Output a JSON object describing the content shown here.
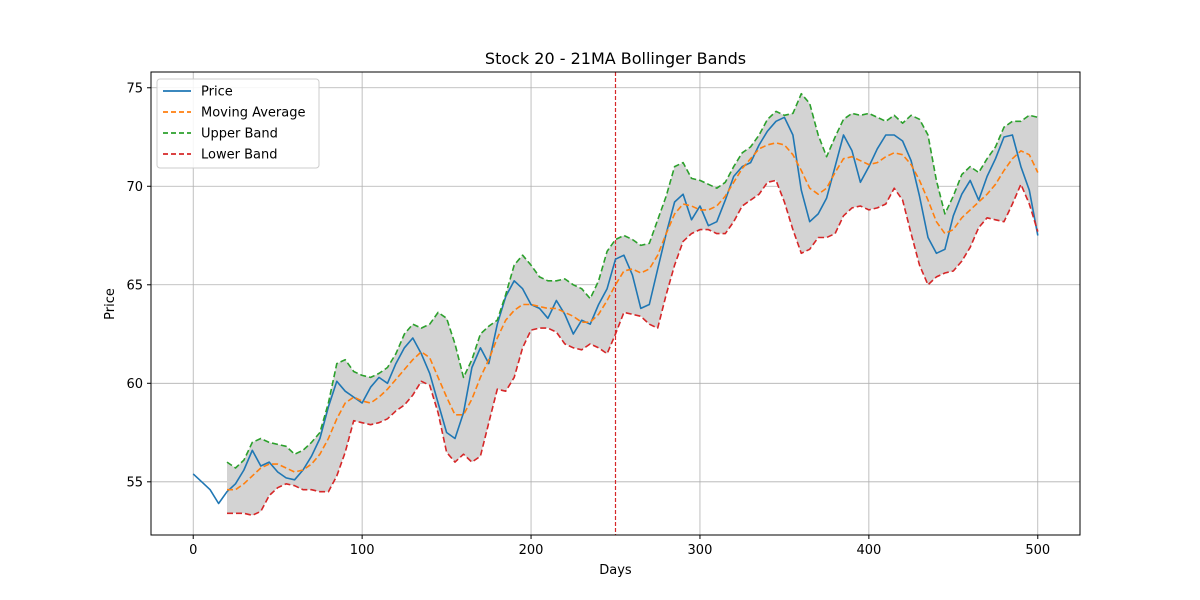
{
  "chart_data": {
    "type": "line",
    "title": "Stock 20 - 21MA Bollinger Bands",
    "xlabel": "Days",
    "ylabel": "Price",
    "xlim": [
      -25,
      525
    ],
    "ylim": [
      52.3,
      75.8
    ],
    "xticks": [
      0,
      100,
      200,
      300,
      400,
      500
    ],
    "yticks": [
      55,
      60,
      65,
      70,
      75
    ],
    "grid": true,
    "legend_position": "top-left",
    "vertical_marker": {
      "x": 250,
      "color": "#d62728",
      "style": "dashed"
    },
    "band_fill_color": "#d3d3d3",
    "series": [
      {
        "name": "Price",
        "color": "#1f77b4",
        "style": "solid",
        "x": [
          0,
          5,
          10,
          15,
          20,
          25,
          30,
          35,
          40,
          45,
          50,
          55,
          60,
          65,
          70,
          75,
          80,
          85,
          90,
          95,
          100,
          105,
          110,
          115,
          120,
          125,
          130,
          135,
          140,
          145,
          150,
          155,
          160,
          165,
          170,
          175,
          180,
          185,
          190,
          195,
          200,
          205,
          210,
          215,
          220,
          225,
          230,
          235,
          240,
          245,
          250,
          255,
          260,
          265,
          270,
          275,
          280,
          285,
          290,
          295,
          300,
          305,
          310,
          315,
          320,
          325,
          330,
          335,
          340,
          345,
          350,
          355,
          360,
          365,
          370,
          375,
          380,
          385,
          390,
          395,
          400,
          405,
          410,
          415,
          420,
          425,
          430,
          435,
          440,
          445,
          450,
          455,
          460,
          465,
          470,
          475,
          480,
          485,
          490,
          495,
          500
        ],
        "values": [
          55.4,
          55.0,
          54.6,
          53.9,
          54.5,
          54.9,
          55.6,
          56.6,
          55.8,
          56.0,
          55.5,
          55.2,
          55.1,
          55.6,
          56.3,
          57.2,
          58.8,
          60.1,
          59.6,
          59.3,
          59.0,
          59.8,
          60.3,
          60.0,
          61.0,
          61.8,
          62.3,
          61.5,
          60.5,
          59.0,
          57.5,
          57.2,
          58.5,
          60.8,
          61.8,
          61.0,
          63.0,
          64.4,
          65.2,
          64.8,
          64.0,
          63.8,
          63.3,
          64.2,
          63.5,
          62.5,
          63.2,
          63.0,
          64.0,
          64.8,
          66.3,
          66.5,
          65.5,
          63.8,
          64.0,
          65.8,
          67.6,
          69.2,
          69.6,
          68.3,
          69.0,
          68.0,
          68.2,
          69.3,
          70.5,
          71.0,
          71.2,
          72.1,
          72.8,
          73.3,
          73.5,
          72.6,
          69.8,
          68.2,
          68.6,
          69.4,
          71.0,
          72.6,
          71.8,
          70.2,
          71.0,
          71.9,
          72.6,
          72.6,
          72.3,
          71.3,
          69.5,
          67.4,
          66.6,
          66.8,
          68.5,
          69.6,
          70.3,
          69.3,
          70.5,
          71.4,
          72.5,
          72.6,
          71.0,
          69.8,
          67.5
        ]
      },
      {
        "name": "Moving Average",
        "color": "#ff7f0e",
        "style": "dashed",
        "x": [
          20,
          25,
          30,
          35,
          40,
          45,
          50,
          55,
          60,
          65,
          70,
          75,
          80,
          85,
          90,
          95,
          100,
          105,
          110,
          115,
          120,
          125,
          130,
          135,
          140,
          145,
          150,
          155,
          160,
          165,
          170,
          175,
          180,
          185,
          190,
          195,
          200,
          205,
          210,
          215,
          220,
          225,
          230,
          235,
          240,
          245,
          250,
          255,
          260,
          265,
          270,
          275,
          280,
          285,
          290,
          295,
          300,
          305,
          310,
          315,
          320,
          325,
          330,
          335,
          340,
          345,
          350,
          355,
          360,
          365,
          370,
          375,
          380,
          385,
          390,
          395,
          400,
          405,
          410,
          415,
          420,
          425,
          430,
          435,
          440,
          445,
          450,
          455,
          460,
          465,
          470,
          475,
          480,
          485,
          490,
          495,
          500
        ],
        "values": [
          54.6,
          54.6,
          54.9,
          55.3,
          55.7,
          55.9,
          55.9,
          55.7,
          55.5,
          55.6,
          55.9,
          56.4,
          57.2,
          58.2,
          59.0,
          59.3,
          59.1,
          59.0,
          59.3,
          59.7,
          60.2,
          60.7,
          61.2,
          61.6,
          61.3,
          60.3,
          59.3,
          58.4,
          58.4,
          59.2,
          60.3,
          61.2,
          62.3,
          63.2,
          63.7,
          64.0,
          64.0,
          63.9,
          63.8,
          63.8,
          63.6,
          63.4,
          63.1,
          63.1,
          63.5,
          64.2,
          65.0,
          65.7,
          65.8,
          65.6,
          65.8,
          66.5,
          67.6,
          68.6,
          69.1,
          69.0,
          68.8,
          68.8,
          69.0,
          69.5,
          70.2,
          70.9,
          71.4,
          71.9,
          72.1,
          72.2,
          72.1,
          71.6,
          70.8,
          69.9,
          69.6,
          69.9,
          70.7,
          71.4,
          71.5,
          71.3,
          71.1,
          71.2,
          71.5,
          71.7,
          71.6,
          71.1,
          70.3,
          69.3,
          68.2,
          67.6,
          67.8,
          68.4,
          68.8,
          69.2,
          69.6,
          70.1,
          70.8,
          71.4,
          71.8,
          71.6,
          70.7
        ]
      },
      {
        "name": "Upper Band",
        "color": "#2ca02c",
        "style": "dashed",
        "x": [
          20,
          25,
          30,
          35,
          40,
          45,
          50,
          55,
          60,
          65,
          70,
          75,
          80,
          85,
          90,
          95,
          100,
          105,
          110,
          115,
          120,
          125,
          130,
          135,
          140,
          145,
          150,
          155,
          160,
          165,
          170,
          175,
          180,
          185,
          190,
          195,
          200,
          205,
          210,
          215,
          220,
          225,
          230,
          235,
          240,
          245,
          250,
          255,
          260,
          265,
          270,
          275,
          280,
          285,
          290,
          295,
          300,
          305,
          310,
          315,
          320,
          325,
          330,
          335,
          340,
          345,
          350,
          355,
          360,
          365,
          370,
          375,
          380,
          385,
          390,
          395,
          400,
          405,
          410,
          415,
          420,
          425,
          430,
          435,
          440,
          445,
          450,
          455,
          460,
          465,
          470,
          475,
          480,
          485,
          490,
          495,
          500
        ],
        "values": [
          56.0,
          55.7,
          56.1,
          57.0,
          57.2,
          57.0,
          56.9,
          56.8,
          56.4,
          56.6,
          57.0,
          57.5,
          59.0,
          61.0,
          61.2,
          60.6,
          60.4,
          60.3,
          60.5,
          60.8,
          61.5,
          62.5,
          63.0,
          62.8,
          63.0,
          63.6,
          63.3,
          62.0,
          60.3,
          61.2,
          62.5,
          62.9,
          63.2,
          64.5,
          66.0,
          66.5,
          66.0,
          65.4,
          65.2,
          65.2,
          65.3,
          65.0,
          64.8,
          64.3,
          65.2,
          66.7,
          67.3,
          67.5,
          67.3,
          67.0,
          67.1,
          68.3,
          69.5,
          71.0,
          71.2,
          70.4,
          70.3,
          70.1,
          69.9,
          70.2,
          71.0,
          71.7,
          72.0,
          72.6,
          73.4,
          73.8,
          73.6,
          73.7,
          74.7,
          74.2,
          72.6,
          71.5,
          72.5,
          73.4,
          73.7,
          73.6,
          73.7,
          73.5,
          73.3,
          73.6,
          73.2,
          73.6,
          73.4,
          72.6,
          70.3,
          68.6,
          69.5,
          70.6,
          71.0,
          70.7,
          71.4,
          72.0,
          73.0,
          73.3,
          73.3,
          73.6,
          73.5
        ]
      },
      {
        "name": "Lower Band",
        "color": "#d62728",
        "style": "dashed",
        "x": [
          20,
          25,
          30,
          35,
          40,
          45,
          50,
          55,
          60,
          65,
          70,
          75,
          80,
          85,
          90,
          95,
          100,
          105,
          110,
          115,
          120,
          125,
          130,
          135,
          140,
          145,
          150,
          155,
          160,
          165,
          170,
          175,
          180,
          185,
          190,
          195,
          200,
          205,
          210,
          215,
          220,
          225,
          230,
          235,
          240,
          245,
          250,
          255,
          260,
          265,
          270,
          275,
          280,
          285,
          290,
          295,
          300,
          305,
          310,
          315,
          320,
          325,
          330,
          335,
          340,
          345,
          350,
          355,
          360,
          365,
          370,
          375,
          380,
          385,
          390,
          395,
          400,
          405,
          410,
          415,
          420,
          425,
          430,
          435,
          440,
          445,
          450,
          455,
          460,
          465,
          470,
          475,
          480,
          485,
          490,
          495,
          500
        ],
        "values": [
          53.4,
          53.4,
          53.4,
          53.3,
          53.5,
          54.3,
          54.7,
          54.9,
          54.8,
          54.6,
          54.6,
          54.5,
          54.5,
          55.3,
          56.5,
          58.1,
          58.0,
          57.9,
          58.0,
          58.2,
          58.6,
          58.9,
          59.4,
          60.1,
          59.9,
          58.5,
          56.5,
          56.0,
          56.4,
          56.0,
          56.3,
          58.0,
          59.7,
          59.6,
          60.3,
          61.8,
          62.7,
          62.8,
          62.8,
          62.6,
          62.0,
          61.8,
          61.7,
          62.0,
          61.8,
          61.5,
          62.5,
          63.6,
          63.5,
          63.4,
          63.0,
          62.8,
          64.5,
          66.0,
          67.2,
          67.6,
          67.8,
          67.8,
          67.6,
          67.6,
          68.2,
          69.0,
          69.3,
          69.6,
          70.2,
          70.3,
          69.2,
          67.8,
          66.6,
          66.8,
          67.4,
          67.4,
          67.6,
          68.5,
          68.9,
          69.0,
          68.8,
          68.9,
          69.1,
          69.9,
          69.3,
          67.6,
          66.0,
          65.0,
          65.4,
          65.6,
          65.7,
          66.2,
          66.9,
          67.9,
          68.4,
          68.3,
          68.2,
          69.1,
          70.1,
          69.1,
          67.7
        ]
      }
    ]
  }
}
